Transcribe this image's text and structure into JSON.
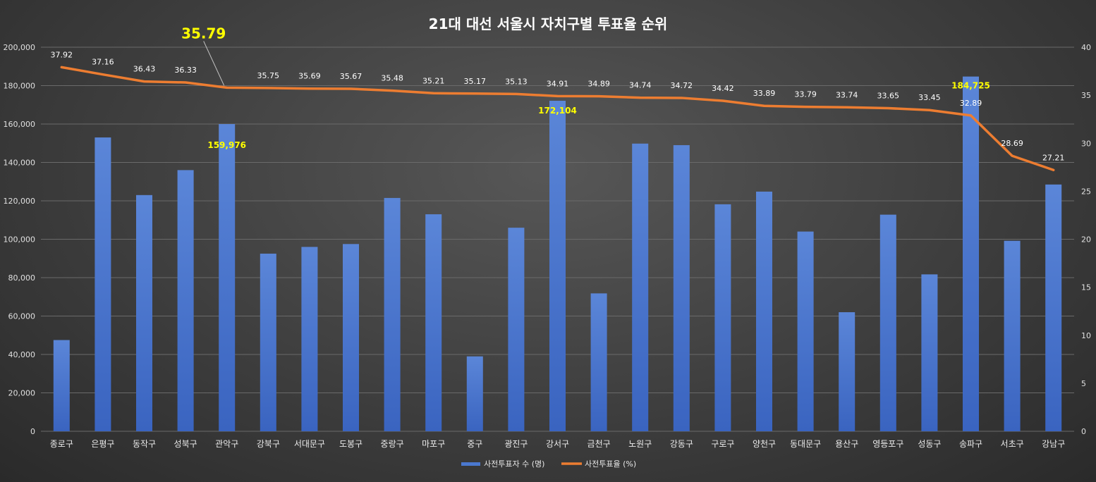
{
  "chart_data": {
    "type": "bar+line",
    "title": "21대 대선 서울시 자치구별 투표율 순위",
    "categories": [
      "종로구",
      "은평구",
      "동작구",
      "성북구",
      "관악구",
      "강북구",
      "서대문구",
      "도봉구",
      "중랑구",
      "마포구",
      "중구",
      "광진구",
      "강서구",
      "금천구",
      "노원구",
      "강동구",
      "구로구",
      "양천구",
      "동대문구",
      "용산구",
      "영등포구",
      "성동구",
      "송파구",
      "서초구",
      "강남구"
    ],
    "series": [
      {
        "name": "사전투표자 수 (명)",
        "type": "bar",
        "axis": "left",
        "color": "#4a78cf",
        "values": [
          47500,
          153000,
          123000,
          136000,
          159976,
          92500,
          96000,
          97500,
          121500,
          113000,
          39000,
          106000,
          172104,
          71800,
          149800,
          149000,
          118200,
          124800,
          104000,
          62000,
          112800,
          81700,
          184725,
          99200,
          128500
        ]
      },
      {
        "name": "사전투표율 (%)",
        "type": "line",
        "axis": "right",
        "color": "#ed7d31",
        "values": [
          37.92,
          37.16,
          36.43,
          36.33,
          35.79,
          35.75,
          35.69,
          35.67,
          35.48,
          35.21,
          35.17,
          35.13,
          34.91,
          34.89,
          34.74,
          34.72,
          34.42,
          33.89,
          33.79,
          33.74,
          33.65,
          33.45,
          32.89,
          28.69,
          27.21
        ]
      }
    ],
    "y_left": {
      "min": 0,
      "max": 200000,
      "ticks": [
        "0",
        "20,000",
        "40,000",
        "60,000",
        "80,000",
        "100,000",
        "120,000",
        "140,000",
        "160,000",
        "180,000",
        "200,000"
      ]
    },
    "y_right": {
      "min": 0,
      "max": 40,
      "ticks": [
        "0",
        "5",
        "10",
        "15",
        "20",
        "25",
        "30",
        "35",
        "40"
      ]
    },
    "rate_labels": [
      "37.92",
      "37.16",
      "36.43",
      "36.33",
      "",
      "35.75",
      "35.69",
      "35.67",
      "35.48",
      "35.21",
      "35.17",
      "35.13",
      "34.91",
      "34.89",
      "34.74",
      "34.72",
      "34.42",
      "33.89",
      "33.79",
      "33.74",
      "33.65",
      "33.45",
      "32.89",
      "28.69",
      "27.21"
    ],
    "bar_highlights": [
      {
        "index": 4,
        "label": "159,976"
      },
      {
        "index": 12,
        "label": "172,104"
      },
      {
        "index": 22,
        "label": "184,725"
      }
    ],
    "callout": {
      "index": 4,
      "label": "35.79"
    },
    "grid": true,
    "legend_position": "bottom"
  }
}
